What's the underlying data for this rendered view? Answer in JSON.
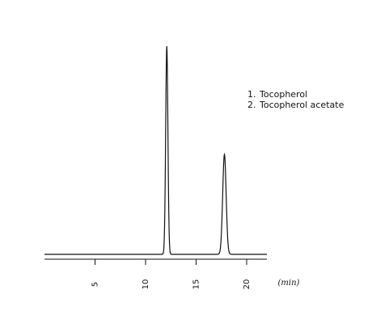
{
  "chart_data": {
    "type": "line",
    "title": "",
    "xlabel": "(min)",
    "ylabel": "",
    "xlim": [
      0,
      22
    ],
    "ylim": [
      0,
      100
    ],
    "grid": false,
    "legend_position": "top-right",
    "x_ticks": [
      {
        "value": 5,
        "label": "5"
      },
      {
        "value": 10,
        "label": "10"
      },
      {
        "value": 15,
        "label": "15"
      },
      {
        "value": 20,
        "label": "20"
      }
    ],
    "peaks": [
      {
        "label": "1",
        "name": "Tocopherol",
        "retention_time": 12.1,
        "height": 100,
        "width": 0.11
      },
      {
        "label": "2",
        "name": "Tocopherol acetate",
        "retention_time": 17.8,
        "height": 48,
        "width": 0.17
      }
    ],
    "legend": [
      {
        "number": "1.",
        "name": "Tocopherol"
      },
      {
        "number": "2.",
        "name": "Tocopherol acetate"
      }
    ],
    "line_color": "#111111"
  }
}
